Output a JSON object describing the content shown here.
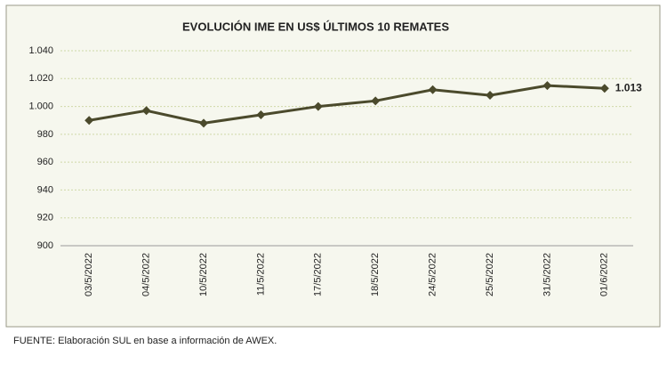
{
  "chart_data": {
    "type": "line",
    "title": "EVOLUCIÓN IME EN US$ ÚLTIMOS 10 REMATES",
    "categories": [
      "03/5/2022",
      "04/5/2022",
      "10/5/2022",
      "11/5/2022",
      "17/5/2022",
      "18/5/2022",
      "24/5/2022",
      "25/5/2022",
      "31/5/2022",
      "01/6/2022"
    ],
    "series": [
      {
        "color": "#4b4a2c",
        "values": [
          990,
          997,
          988,
          994,
          1000,
          1004,
          1012,
          1008,
          1015,
          1013
        ],
        "value_labels": [
          null,
          null,
          null,
          null,
          null,
          null,
          null,
          null,
          null,
          "1.013"
        ]
      }
    ],
    "ylim": [
      900,
      1040
    ],
    "yticks": [
      900,
      920,
      940,
      960,
      980,
      {
        "value": 1000,
        "label": "1.000"
      },
      {
        "value": 1020,
        "label": "1.020"
      },
      {
        "value": 1040,
        "label": "1.040"
      }
    ],
    "grid": true
  },
  "source": "FUENTE: Elaboración SUL en base a información de AWEX."
}
